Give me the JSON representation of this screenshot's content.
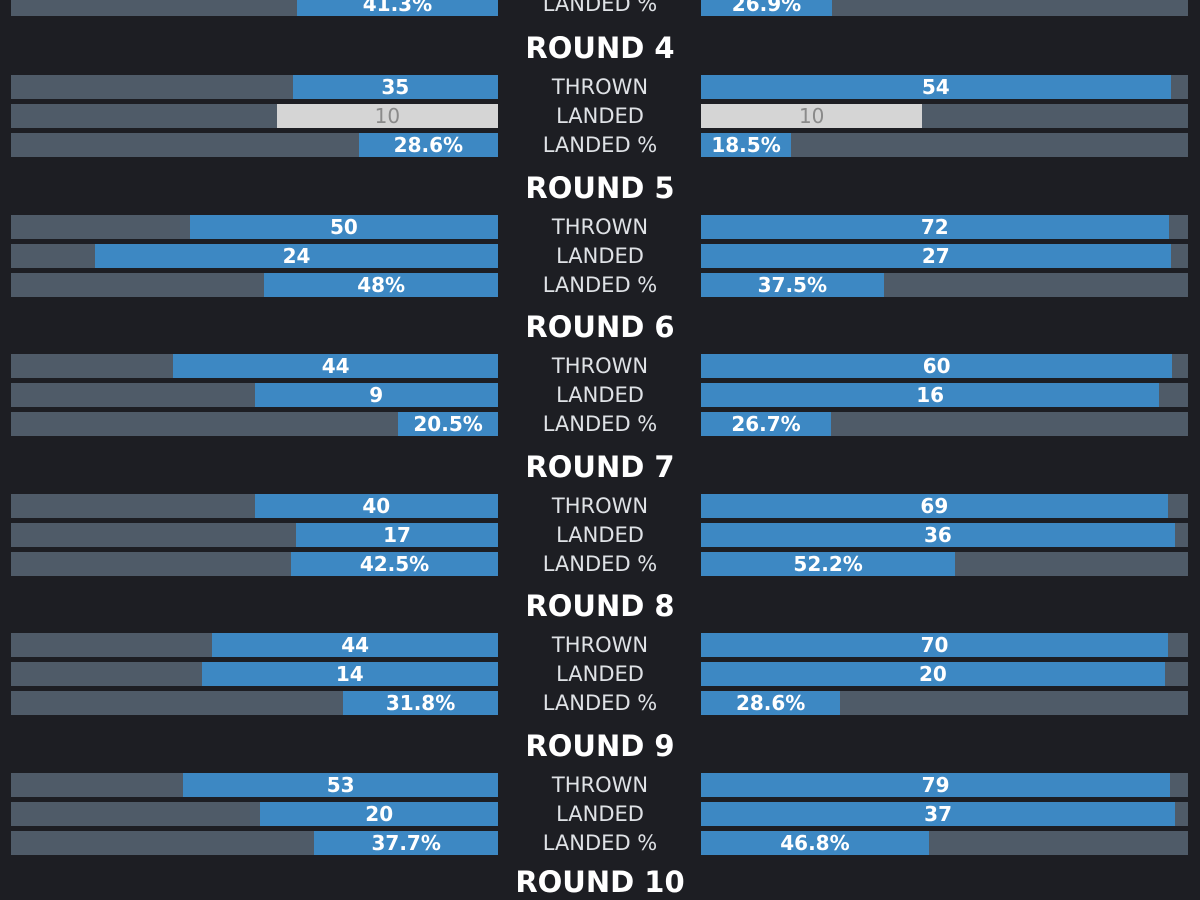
{
  "chart_data": {
    "type": "bar",
    "labels": {
      "thrown": "THROWN",
      "landed": "LANDED",
      "landed_pct": "LANDED %"
    },
    "partial_top_row": {
      "label": "LANDED %",
      "left": "41.3%",
      "left_value": 41.3,
      "right": "26.9%",
      "right_value": 26.9
    },
    "rounds": [
      {
        "title": "ROUND 4",
        "rows": [
          {
            "label": "THROWN",
            "left": "35",
            "left_value": 35,
            "left_max": 83,
            "right": "54",
            "right_value": 54,
            "right_max": 56,
            "equal": false
          },
          {
            "label": "LANDED",
            "left": "10",
            "left_value": 10,
            "left_max": 22,
            "right": "10",
            "right_value": 10,
            "right_max": 22,
            "equal": true
          },
          {
            "label": "LANDED %",
            "left": "28.6%",
            "left_value": 28.6,
            "left_max": 100,
            "right": "18.5%",
            "right_value": 18.5,
            "right_max": 100,
            "equal": false
          }
        ]
      },
      {
        "title": "ROUND 5",
        "rows": [
          {
            "label": "THROWN",
            "left": "50",
            "left_value": 50,
            "left_max": 79,
            "right": "72",
            "right_value": 72,
            "right_max": 75,
            "equal": false
          },
          {
            "label": "LANDED",
            "left": "24",
            "left_value": 24,
            "left_max": 29,
            "right": "27",
            "right_value": 27,
            "right_max": 28,
            "equal": false
          },
          {
            "label": "LANDED %",
            "left": "48%",
            "left_value": 48,
            "left_max": 100,
            "right": "37.5%",
            "right_value": 37.5,
            "right_max": 100,
            "equal": false
          }
        ]
      },
      {
        "title": "ROUND 6",
        "rows": [
          {
            "label": "THROWN",
            "left": "44",
            "left_value": 44,
            "left_max": 66,
            "right": "60",
            "right_value": 60,
            "right_max": 62,
            "equal": false
          },
          {
            "label": "LANDED",
            "left": "9",
            "left_value": 9,
            "left_max": 18,
            "right": "16",
            "right_value": 16,
            "right_max": 17,
            "equal": false
          },
          {
            "label": "LANDED %",
            "left": "20.5%",
            "left_value": 20.5,
            "left_max": 100,
            "right": "26.7%",
            "right_value": 26.7,
            "right_max": 100,
            "equal": false
          }
        ]
      },
      {
        "title": "ROUND 7",
        "rows": [
          {
            "label": "THROWN",
            "left": "40",
            "left_value": 40,
            "left_max": 80,
            "right": "69",
            "right_value": 69,
            "right_max": 72,
            "equal": false
          },
          {
            "label": "LANDED",
            "left": "17",
            "left_value": 17,
            "left_max": 41,
            "right": "36",
            "right_value": 36,
            "right_max": 37,
            "equal": false
          },
          {
            "label": "LANDED %",
            "left": "42.5%",
            "left_value": 42.5,
            "left_max": 100,
            "right": "52.2%",
            "right_value": 52.2,
            "right_max": 100,
            "equal": false
          }
        ]
      },
      {
        "title": "ROUND 8",
        "rows": [
          {
            "label": "THROWN",
            "left": "44",
            "left_value": 44,
            "left_max": 75,
            "right": "70",
            "right_value": 70,
            "right_max": 73,
            "equal": false
          },
          {
            "label": "LANDED",
            "left": "14",
            "left_value": 14,
            "left_max": 23,
            "right": "20",
            "right_value": 20,
            "right_max": 21,
            "equal": false
          },
          {
            "label": "LANDED %",
            "left": "31.8%",
            "left_value": 31.8,
            "left_max": 100,
            "right": "28.6%",
            "right_value": 28.6,
            "right_max": 100,
            "equal": false
          }
        ]
      },
      {
        "title": "ROUND 9",
        "rows": [
          {
            "label": "THROWN",
            "left": "53",
            "left_value": 53,
            "left_max": 82,
            "right": "79",
            "right_value": 79,
            "right_max": 82,
            "equal": false
          },
          {
            "label": "LANDED",
            "left": "20",
            "left_value": 20,
            "left_max": 41,
            "right": "37",
            "right_value": 37,
            "right_max": 38,
            "equal": false
          },
          {
            "label": "LANDED %",
            "left": "37.7%",
            "left_value": 37.7,
            "left_max": 100,
            "right": "46.8%",
            "right_value": 46.8,
            "right_max": 100,
            "equal": false
          }
        ]
      }
    ],
    "partial_bottom_title": "ROUND 10"
  }
}
